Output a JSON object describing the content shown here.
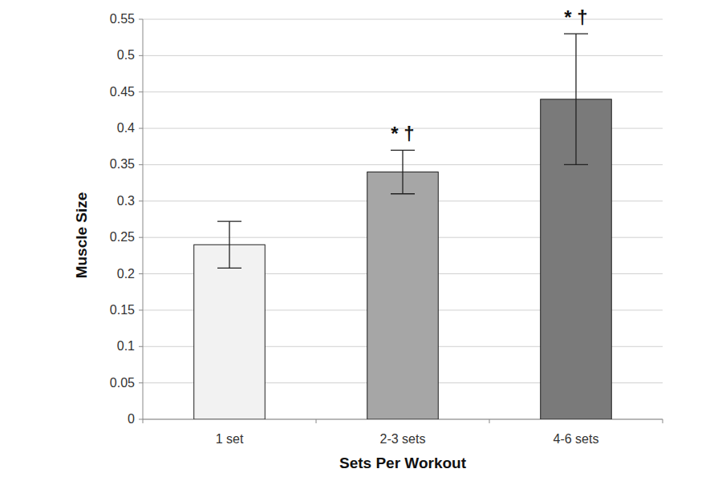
{
  "chart_data": {
    "type": "bar",
    "x_label": "Sets Per Workout",
    "y_label": "Muscle Size",
    "categories": [
      "1 set",
      "2-3 sets",
      "4-6 sets"
    ],
    "values": [
      0.24,
      0.34,
      0.44
    ],
    "errors": [
      0.032,
      0.03,
      0.09
    ],
    "colors": [
      "#f2f2f2",
      "#a6a6a6",
      "#7a7a7a"
    ],
    "annotations": [
      {
        "category": "2-3 sets",
        "text": "* †"
      },
      {
        "category": "4-6 sets",
        "text": "* †"
      }
    ],
    "ylim": [
      0,
      0.55
    ],
    "yticks": [
      0,
      0.05,
      0.1,
      0.15,
      0.2,
      0.25,
      0.3,
      0.35,
      0.4,
      0.45,
      0.5,
      0.55
    ],
    "grid": true
  }
}
